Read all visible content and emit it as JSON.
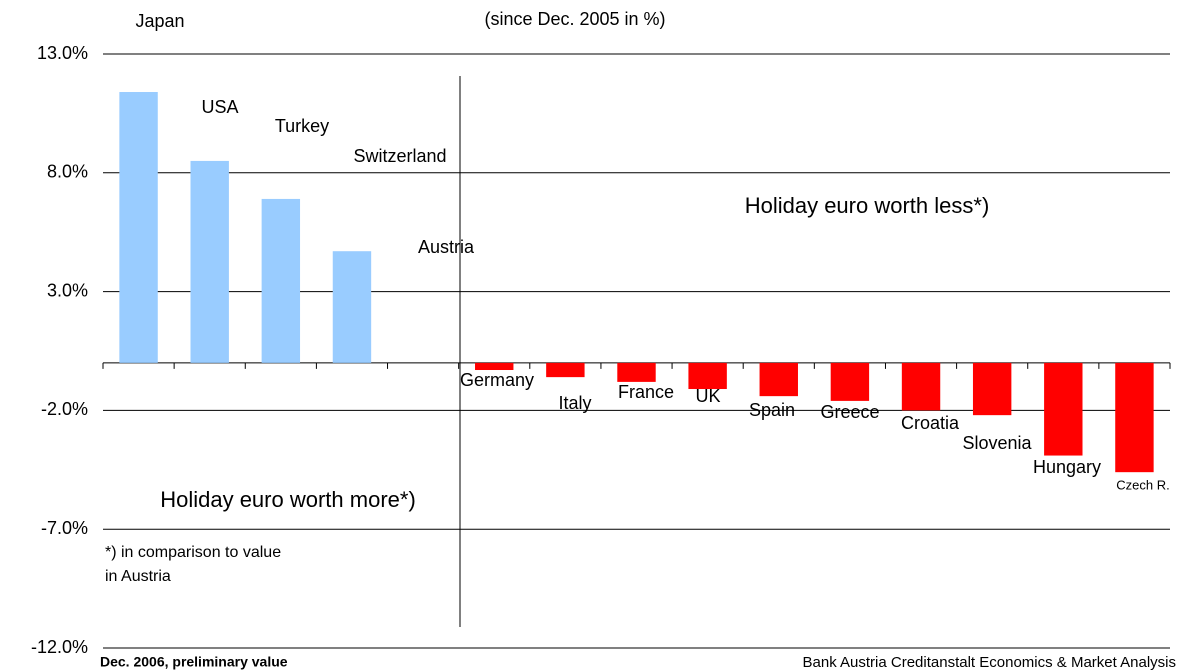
{
  "chart_data": {
    "type": "bar",
    "subtitle": "(since Dec. 2005 in %)",
    "categories": [
      "Japan",
      "USA",
      "Turkey",
      "Switzerland",
      "Austria",
      "Germany",
      "Italy",
      "France",
      "UK",
      "Spain",
      "Greece",
      "Croatia",
      "Slovenia",
      "Hungary",
      "Czech R."
    ],
    "values": [
      11.4,
      8.5,
      6.9,
      4.7,
      0,
      -0.3,
      -0.6,
      -0.8,
      -1.1,
      -1.4,
      -1.6,
      -2.0,
      -2.2,
      -3.9,
      -4.6
    ],
    "color_positive": "#99ccff",
    "color_negative": "#ff0000",
    "ylim": [
      -12,
      13
    ],
    "yticks": [
      {
        "value": 13,
        "label": "13.0%"
      },
      {
        "value": 8,
        "label": "8.0%"
      },
      {
        "value": 3,
        "label": "3.0%"
      },
      {
        "value": -2,
        "label": "-2.0%"
      },
      {
        "value": -7,
        "label": "-7.0%"
      },
      {
        "value": -12,
        "label": "-12.0%"
      }
    ],
    "grid": true,
    "annotations": [
      "Holiday euro worth less*)",
      "Holiday euro worth more*)",
      "*) in comparison to value",
      "in Austria"
    ],
    "footer_left": "Dec. 2006, preliminary value",
    "footer_right": "Bank Austria Creditanstalt Economics & Market Analysis"
  }
}
